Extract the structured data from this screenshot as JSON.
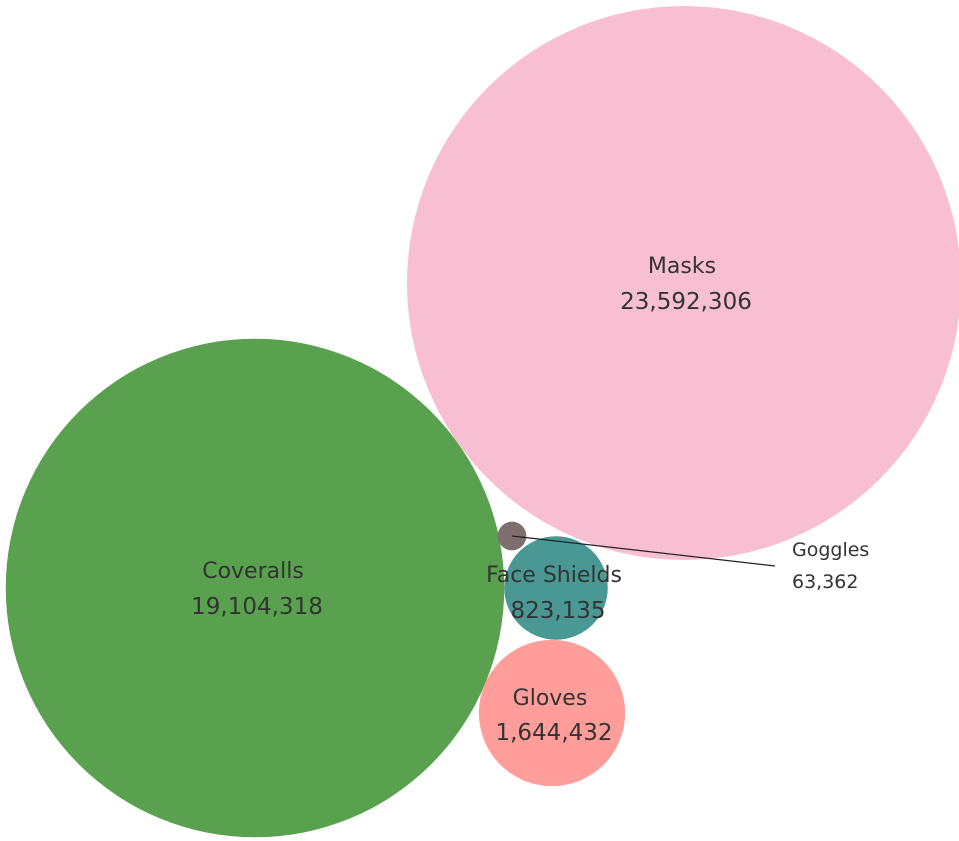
{
  "chart_data": {
    "type": "packed-bubble",
    "title": "",
    "items": [
      {
        "name": "Masks",
        "label": "Masks",
        "value": 23592306,
        "value_label": "23,592,306",
        "color": "#F8BFD3"
      },
      {
        "name": "Coveralls",
        "label": "Coveralls",
        "value": 19104318,
        "value_label": "19,104,318",
        "color": "#59A14F"
      },
      {
        "name": "Gloves",
        "label": "Gloves",
        "value": 1644432,
        "value_label": "1,644,432",
        "color": "#FF9D9A"
      },
      {
        "name": "Face Shields",
        "label": "Face Shields",
        "value": 823135,
        "value_label": "823,135",
        "color": "#499894"
      },
      {
        "name": "Goggles",
        "label": "Goggles",
        "value": 63362,
        "value_label": "63,362",
        "color": "#7E6E6E"
      }
    ],
    "legend": "none",
    "grid": false
  }
}
